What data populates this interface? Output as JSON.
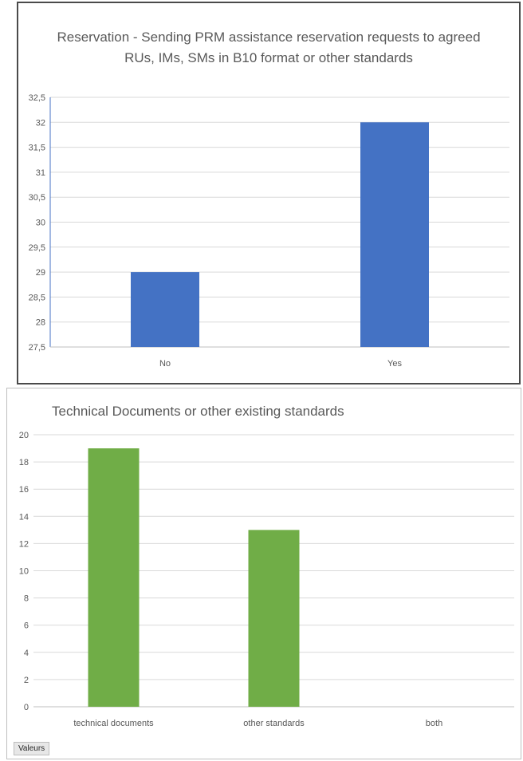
{
  "chart_data": [
    {
      "type": "bar",
      "title": "Reservation - Sending PRM assistance reservation requests to agreed\nRUs, IMs, SMs in B10 format or other standards",
      "categories": [
        "No",
        "Yes"
      ],
      "values": [
        29,
        32
      ],
      "ylim": [
        27.5,
        32.5
      ],
      "yticks": [
        "27,5",
        "28",
        "28,5",
        "29",
        "29,5",
        "30",
        "30,5",
        "31",
        "31,5",
        "32",
        "32,5"
      ],
      "color": "#4472c4",
      "grid": true
    },
    {
      "type": "bar",
      "title": "Technical Documents or other existing standards",
      "categories": [
        "technical documents",
        "other standards",
        "both"
      ],
      "values": [
        19,
        13,
        0
      ],
      "ylim": [
        0,
        20
      ],
      "yticks": [
        "0",
        "2",
        "4",
        "6",
        "8",
        "10",
        "12",
        "14",
        "16",
        "18",
        "20"
      ],
      "color": "#70ad47",
      "grid": true,
      "legend_button": "Valeurs"
    }
  ]
}
